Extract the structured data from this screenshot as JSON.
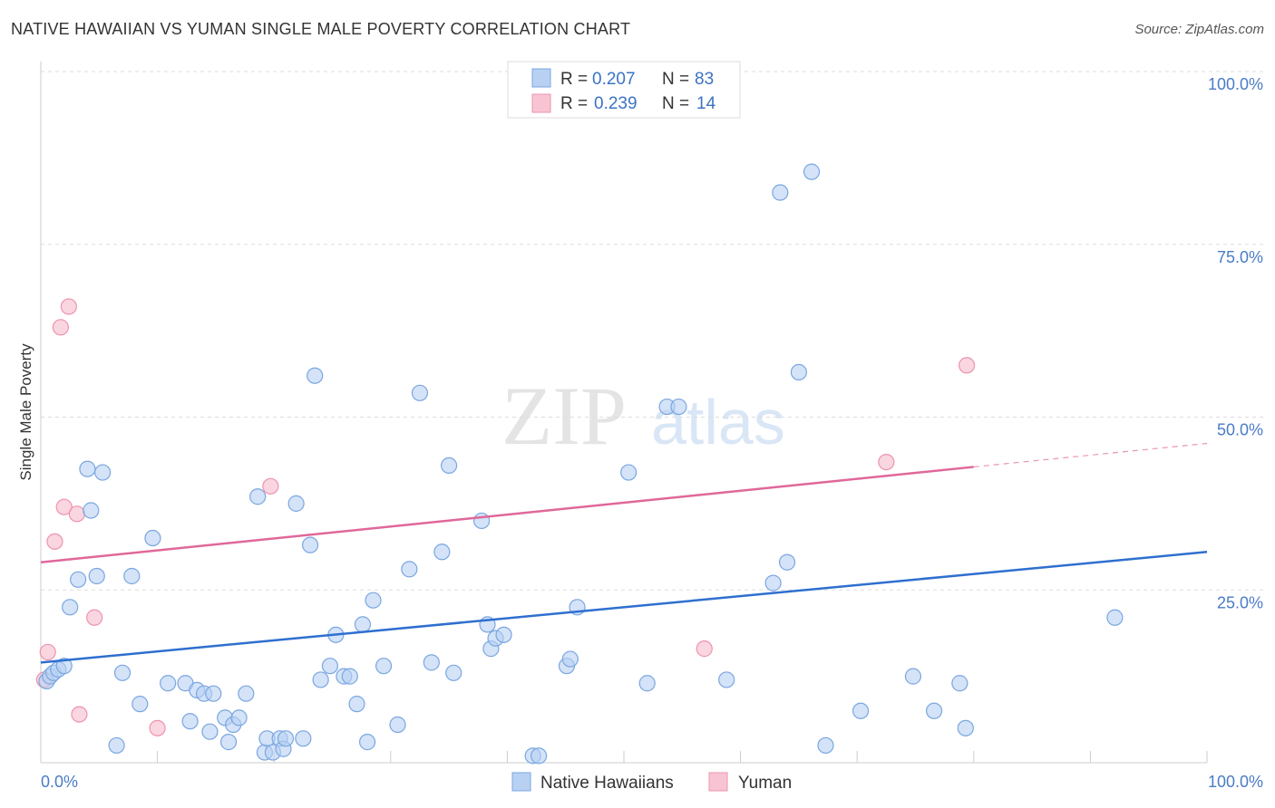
{
  "title": "NATIVE HAWAIIAN VS YUMAN SINGLE MALE POVERTY CORRELATION CHART",
  "source": "Source: ZipAtlas.com",
  "watermark": {
    "zip": "ZIP",
    "atlas": "atlas"
  },
  "colors": {
    "blue_fill": "#b8d1f3",
    "blue_stroke": "#7aa6e0",
    "blue_line": "#2e6fd0",
    "pink_fill": "#f8c4d3",
    "pink_stroke": "#ee93ae",
    "pink_line": "#e0679a",
    "tick": "#4a7cc7",
    "grid": "#dddddd"
  },
  "chart_data": {
    "type": "scatter",
    "title": "NATIVE HAWAIIAN VS YUMAN SINGLE MALE POVERTY CORRELATION CHART",
    "xlabel": "",
    "ylabel": "Single Male Poverty",
    "xlim": [
      0,
      100
    ],
    "ylim": [
      0,
      100
    ],
    "x_tick_labels": {
      "left": "0.0%",
      "right": "100.0%"
    },
    "y_ticks": [
      {
        "value": 25,
        "label": "25.0%"
      },
      {
        "value": 50,
        "label": "50.0%"
      },
      {
        "value": 75,
        "label": "75.0%"
      },
      {
        "value": 100,
        "label": "100.0%"
      }
    ],
    "legend": [
      {
        "series": "Native Hawaiians",
        "r_label": "R = ",
        "r": "0.207",
        "n_label": "N = ",
        "n": "83"
      },
      {
        "series": "Yuman",
        "r_label": "R = ",
        "r": "0.239",
        "n_label": "N = ",
        "n": "14"
      }
    ],
    "series": [
      {
        "name": "Native Hawaiians",
        "trend": {
          "x0": 0,
          "y0": 14.5,
          "x1": 100,
          "y1": 30.5
        },
        "points": [
          [
            0.5,
            11.8
          ],
          [
            0.8,
            12.5
          ],
          [
            1.1,
            13
          ],
          [
            1.5,
            13.5
          ],
          [
            2.0,
            14
          ],
          [
            2.5,
            22.5
          ],
          [
            3.2,
            26.5
          ],
          [
            4.0,
            42.5
          ],
          [
            4.3,
            36.5
          ],
          [
            4.8,
            27
          ],
          [
            5.3,
            42
          ],
          [
            6.5,
            2.5
          ],
          [
            7.0,
            13
          ],
          [
            7.8,
            27
          ],
          [
            8.5,
            8.5
          ],
          [
            9.6,
            32.5
          ],
          [
            10.9,
            11.5
          ],
          [
            12.4,
            11.5
          ],
          [
            12.8,
            6
          ],
          [
            13.4,
            10.5
          ],
          [
            14.0,
            10
          ],
          [
            14.5,
            4.5
          ],
          [
            14.8,
            10
          ],
          [
            15.8,
            6.5
          ],
          [
            16.1,
            3
          ],
          [
            16.5,
            5.5
          ],
          [
            17.0,
            6.5
          ],
          [
            17.6,
            10
          ],
          [
            18.6,
            38.5
          ],
          [
            19.2,
            1.5
          ],
          [
            19.4,
            3.5
          ],
          [
            19.9,
            1.5
          ],
          [
            20.5,
            3.5
          ],
          [
            20.8,
            2
          ],
          [
            21.0,
            3.5
          ],
          [
            21.9,
            37.5
          ],
          [
            22.5,
            3.5
          ],
          [
            23.1,
            31.5
          ],
          [
            23.5,
            56
          ],
          [
            24.0,
            12
          ],
          [
            24.8,
            14
          ],
          [
            25.3,
            18.5
          ],
          [
            26.0,
            12.5
          ],
          [
            26.5,
            12.5
          ],
          [
            27.1,
            8.5
          ],
          [
            27.6,
            20
          ],
          [
            28.0,
            3
          ],
          [
            28.5,
            23.5
          ],
          [
            29.4,
            14
          ],
          [
            30.6,
            5.5
          ],
          [
            31.6,
            28
          ],
          [
            32.5,
            53.5
          ],
          [
            33.5,
            14.5
          ],
          [
            34.4,
            30.5
          ],
          [
            35.0,
            43
          ],
          [
            35.4,
            13
          ],
          [
            37.8,
            35
          ],
          [
            38.3,
            20
          ],
          [
            38.6,
            16.5
          ],
          [
            39.0,
            18
          ],
          [
            39.7,
            18.5
          ],
          [
            42.2,
            1
          ],
          [
            42.7,
            1
          ],
          [
            45.1,
            14
          ],
          [
            45.4,
            15
          ],
          [
            46.0,
            22.5
          ],
          [
            50.4,
            42
          ],
          [
            52.0,
            11.5
          ],
          [
            53.7,
            51.5
          ],
          [
            54.7,
            51.5
          ],
          [
            58.8,
            12
          ],
          [
            62.8,
            26
          ],
          [
            63.4,
            82.5
          ],
          [
            64.0,
            29
          ],
          [
            65.0,
            56.5
          ],
          [
            66.1,
            85.5
          ],
          [
            67.3,
            2.5
          ],
          [
            70.3,
            7.5
          ],
          [
            74.8,
            12.5
          ],
          [
            76.6,
            7.5
          ],
          [
            78.8,
            11.5
          ],
          [
            79.3,
            5
          ],
          [
            92.1,
            21
          ]
        ]
      },
      {
        "name": "Yuman",
        "trend": {
          "x0": 0,
          "y0": 29,
          "x1": 80,
          "y1": 42.8,
          "dash_x1": 100,
          "dash_y1": 46.2
        },
        "points": [
          [
            0.3,
            12
          ],
          [
            0.6,
            16
          ],
          [
            1.2,
            32
          ],
          [
            1.7,
            63
          ],
          [
            2.0,
            37
          ],
          [
            2.4,
            66
          ],
          [
            3.1,
            36
          ],
          [
            3.3,
            7
          ],
          [
            4.6,
            21
          ],
          [
            10.0,
            5
          ],
          [
            19.7,
            40
          ],
          [
            56.9,
            16.5
          ],
          [
            72.5,
            43.5
          ],
          [
            79.4,
            57.5
          ]
        ]
      }
    ]
  }
}
